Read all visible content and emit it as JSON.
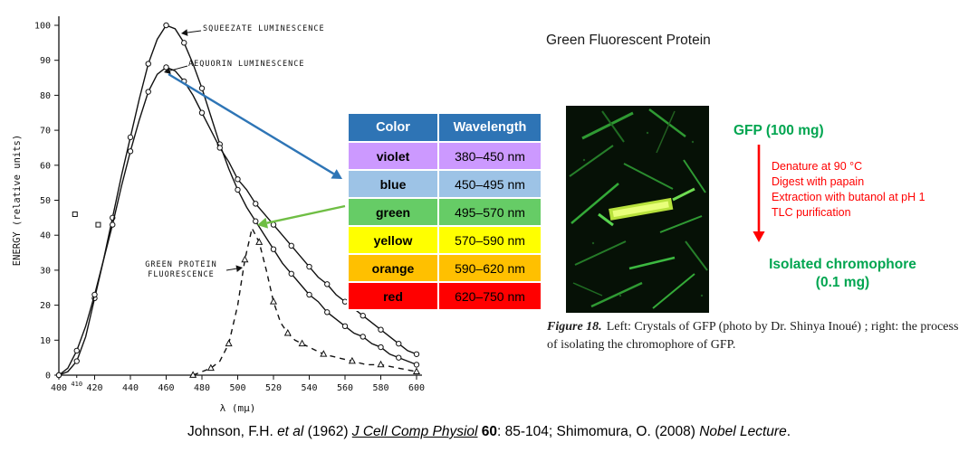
{
  "chart_data": {
    "type": "line",
    "xlabel": "λ (mμ)",
    "ylabel": "ENERGY (relative units)",
    "xlim": [
      400,
      600
    ],
    "ylim": [
      0,
      100
    ],
    "x_ticks": [
      400,
      420,
      440,
      460,
      480,
      500,
      520,
      540,
      560,
      580,
      600
    ],
    "x_minor_tick": {
      "value": 410,
      "label": "410"
    },
    "y_ticks": [
      0,
      10,
      20,
      30,
      40,
      50,
      60,
      70,
      80,
      90,
      100
    ],
    "series": [
      {
        "name": "SQUEEZATE LUMINESCENCE",
        "line": "solid",
        "marker": "circle",
        "peak_nm": 460,
        "peak_value": 100,
        "points": [
          [
            400,
            0
          ],
          [
            405,
            1
          ],
          [
            410,
            4
          ],
          [
            415,
            11
          ],
          [
            420,
            22
          ],
          [
            425,
            33
          ],
          [
            430,
            45
          ],
          [
            435,
            57
          ],
          [
            440,
            68
          ],
          [
            445,
            79
          ],
          [
            450,
            89
          ],
          [
            455,
            96
          ],
          [
            460,
            100
          ],
          [
            465,
            99
          ],
          [
            470,
            95
          ],
          [
            475,
            89
          ],
          [
            480,
            82
          ],
          [
            485,
            74
          ],
          [
            490,
            66
          ],
          [
            495,
            59
          ],
          [
            500,
            53
          ],
          [
            505,
            48
          ],
          [
            510,
            44
          ],
          [
            515,
            40
          ],
          [
            520,
            36
          ],
          [
            525,
            32
          ],
          [
            530,
            29
          ],
          [
            535,
            26
          ],
          [
            540,
            23
          ],
          [
            545,
            21
          ],
          [
            550,
            18
          ],
          [
            555,
            16
          ],
          [
            560,
            14
          ],
          [
            565,
            12
          ],
          [
            570,
            11
          ],
          [
            575,
            9
          ],
          [
            580,
            8
          ],
          [
            585,
            6
          ],
          [
            590,
            5
          ],
          [
            595,
            4
          ],
          [
            600,
            3
          ]
        ]
      },
      {
        "name": "AEQUORIN LUMINESCENCE",
        "line": "solid",
        "marker": "circle",
        "peak_nm": 460,
        "peak_value": 88,
        "points": [
          [
            400,
            0
          ],
          [
            405,
            2
          ],
          [
            410,
            7
          ],
          [
            415,
            14
          ],
          [
            420,
            23
          ],
          [
            425,
            33
          ],
          [
            430,
            43
          ],
          [
            435,
            54
          ],
          [
            440,
            64
          ],
          [
            445,
            73
          ],
          [
            450,
            81
          ],
          [
            455,
            86
          ],
          [
            460,
            88
          ],
          [
            465,
            87
          ],
          [
            470,
            84
          ],
          [
            475,
            80
          ],
          [
            480,
            75
          ],
          [
            485,
            70
          ],
          [
            490,
            65
          ],
          [
            495,
            61
          ],
          [
            500,
            56
          ],
          [
            505,
            53
          ],
          [
            510,
            49
          ],
          [
            515,
            46
          ],
          [
            520,
            43
          ],
          [
            525,
            40
          ],
          [
            530,
            37
          ],
          [
            535,
            34
          ],
          [
            540,
            31
          ],
          [
            545,
            28
          ],
          [
            550,
            26
          ],
          [
            555,
            23
          ],
          [
            560,
            21
          ],
          [
            565,
            19
          ],
          [
            570,
            17
          ],
          [
            575,
            15
          ],
          [
            580,
            13
          ],
          [
            585,
            11
          ],
          [
            590,
            9
          ],
          [
            595,
            7
          ],
          [
            600,
            6
          ]
        ]
      },
      {
        "name": "GREEN PROTEIN FLUORESCENCE",
        "line": "dashed",
        "marker": "triangle",
        "peak_nm": 508,
        "peak_value": 42,
        "points": [
          [
            475,
            0
          ],
          [
            480,
            1
          ],
          [
            485,
            2
          ],
          [
            490,
            4
          ],
          [
            495,
            9
          ],
          [
            500,
            20
          ],
          [
            504,
            33
          ],
          [
            508,
            42
          ],
          [
            512,
            38
          ],
          [
            516,
            30
          ],
          [
            520,
            21
          ],
          [
            524,
            15
          ],
          [
            528,
            12
          ],
          [
            532,
            10
          ],
          [
            536,
            9
          ],
          [
            540,
            8
          ],
          [
            548,
            6
          ],
          [
            556,
            5
          ],
          [
            564,
            4
          ],
          [
            572,
            3
          ],
          [
            580,
            3
          ],
          [
            590,
            2
          ],
          [
            600,
            1
          ]
        ]
      }
    ],
    "stray_points": [
      [
        409,
        46
      ],
      [
        422,
        43
      ]
    ]
  },
  "color_table": {
    "headers": [
      "Color",
      "Wavelength"
    ],
    "header_bg": "#2E74B5",
    "header_fg": "#FFFFFF",
    "rows": [
      {
        "color": "violet",
        "range": "380–450 nm",
        "bg": "#CC99FF"
      },
      {
        "color": "blue",
        "range": "450–495 nm",
        "bg": "#9DC3E6"
      },
      {
        "color": "green",
        "range": "495–570 nm",
        "bg": "#66CC66"
      },
      {
        "color": "yellow",
        "range": "570–590 nm",
        "bg": "#FFFF00"
      },
      {
        "color": "orange",
        "range": "590–620 nm",
        "bg": "#FFC000"
      },
      {
        "color": "red",
        "range": "620–750 nm",
        "bg": "#FF0000"
      }
    ]
  },
  "connectors": {
    "blue": "#2E75B6",
    "green": "#6FBE44"
  },
  "gfp_panel": {
    "title": "Green Fluorescent Protein",
    "start_label": "GFP (100 mg)",
    "steps": [
      "Denature at 90 °C",
      "Digest with papain",
      "Extraction with butanol at pH 1",
      "TLC purification"
    ],
    "end_label_line1": "Isolated chromophore",
    "end_label_line2": "(0.1 mg)",
    "green_color": "#00A550",
    "red_color": "#FF0000"
  },
  "caption": {
    "label": "Figure 18.",
    "text": "Left: Crystals of GFP (photo by Dr. Shinya Inoué) ; right: the process of isolating the chromophore of GFP."
  },
  "citation": {
    "segments": [
      {
        "text": "Johnson, F.H. ",
        "style": "normal"
      },
      {
        "text": "et al",
        "style": "italic"
      },
      {
        "text": " (1962) ",
        "style": "normal"
      },
      {
        "text": "J Cell Comp Physiol",
        "style": "italic-underline"
      },
      {
        "text": " ",
        "style": "normal"
      },
      {
        "text": "60",
        "style": "bold"
      },
      {
        "text": ": 85-104; Shimomura, O. (2008) ",
        "style": "normal"
      },
      {
        "text": "Nobel Lecture",
        "style": "italic"
      },
      {
        "text": ".",
        "style": "normal"
      }
    ]
  }
}
